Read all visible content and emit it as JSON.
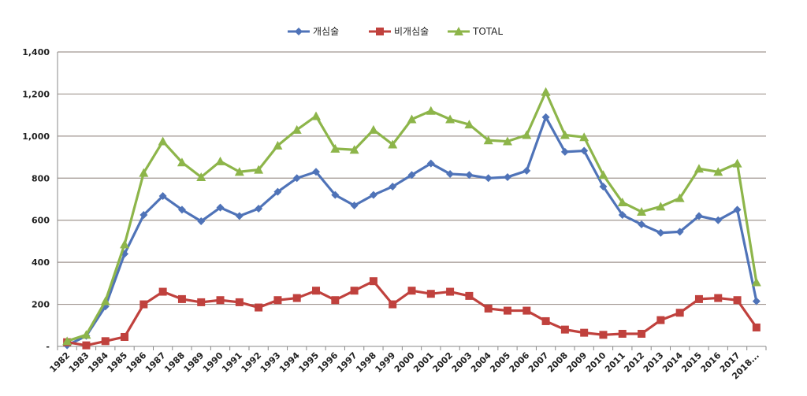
{
  "chart_data": {
    "type": "line",
    "title": "",
    "xlabel": "",
    "ylabel": "",
    "ylim": [
      0,
      1400
    ],
    "yticks": [
      0,
      200,
      400,
      600,
      800,
      1000,
      1200,
      1400
    ],
    "ytick_labels": [
      "-",
      "200",
      "400",
      "600",
      "800",
      "1,000",
      "1,200",
      "1,400"
    ],
    "grid": true,
    "legend_position": "top-center",
    "categories": [
      "1982",
      "1983",
      "1984",
      "1985",
      "1986",
      "1987",
      "1988",
      "1989",
      "1990",
      "1991",
      "1992",
      "1993",
      "1994",
      "1995",
      "1996",
      "1997",
      "1998",
      "1999",
      "2000",
      "2001",
      "2002",
      "2003",
      "2004",
      "2005",
      "2006",
      "2007",
      "2008",
      "2009",
      "2010",
      "2011",
      "2012",
      "2013",
      "2014",
      "2015",
      "2016",
      "2017",
      "2018..."
    ],
    "series": [
      {
        "name": "개심술",
        "color": "#4f73b8",
        "marker": "diamond",
        "values": [
          5,
          50,
          190,
          440,
          625,
          715,
          650,
          595,
          660,
          620,
          655,
          735,
          800,
          830,
          720,
          670,
          720,
          760,
          815,
          870,
          820,
          815,
          800,
          805,
          835,
          1090,
          925,
          930,
          760,
          625,
          580,
          540,
          545,
          620,
          600,
          650,
          215
        ]
      },
      {
        "name": "비개심술",
        "color": "#c0413d",
        "marker": "square",
        "values": [
          20,
          5,
          25,
          45,
          200,
          260,
          225,
          210,
          220,
          210,
          185,
          220,
          230,
          265,
          220,
          265,
          310,
          200,
          265,
          250,
          260,
          240,
          180,
          170,
          170,
          120,
          80,
          65,
          55,
          60,
          60,
          125,
          160,
          225,
          230,
          220,
          90
        ]
      },
      {
        "name": "TOTAL",
        "color": "#8db54a",
        "marker": "triangle",
        "values": [
          25,
          55,
          215,
          485,
          825,
          975,
          875,
          805,
          880,
          830,
          840,
          955,
          1030,
          1095,
          940,
          935,
          1030,
          960,
          1080,
          1120,
          1080,
          1055,
          980,
          975,
          1005,
          1210,
          1005,
          995,
          815,
          685,
          640,
          665,
          705,
          845,
          830,
          870,
          305
        ]
      }
    ]
  }
}
